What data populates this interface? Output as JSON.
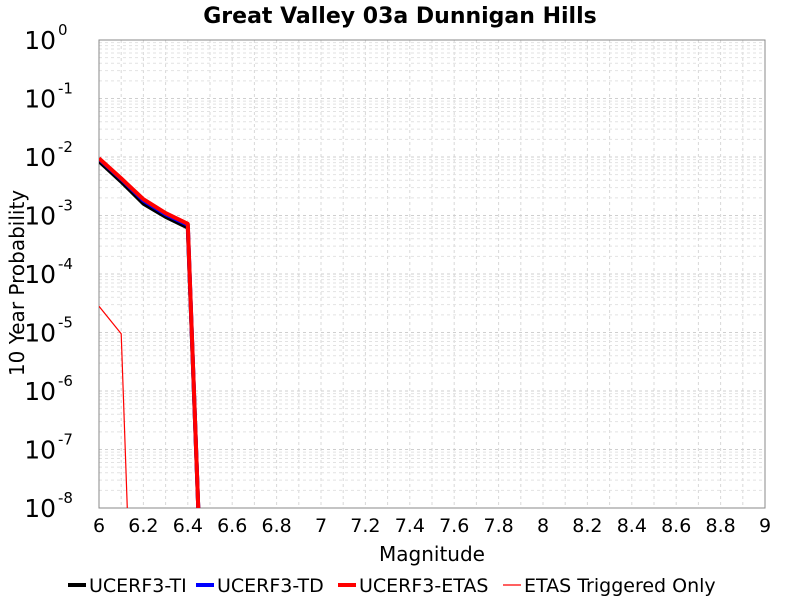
{
  "chart_data": {
    "type": "line",
    "title": "Great Valley 03a Dunnigan Hills",
    "xlabel": "Magnitude",
    "ylabel": "10 Year Probability",
    "xlim": [
      6,
      9
    ],
    "ylim": [
      1e-08,
      1
    ],
    "yscale": "log",
    "xticks": [
      "6",
      "6.2",
      "6.4",
      "6.6",
      "6.8",
      "7",
      "7.2",
      "7.4",
      "7.6",
      "7.8",
      "8",
      "8.2",
      "8.4",
      "8.6",
      "8.8",
      "9"
    ],
    "yticks": [
      {
        "base": "10",
        "exp": "0"
      },
      {
        "base": "10",
        "exp": "-1"
      },
      {
        "base": "10",
        "exp": "-2"
      },
      {
        "base": "10",
        "exp": "-3"
      },
      {
        "base": "10",
        "exp": "-4"
      },
      {
        "base": "10",
        "exp": "-5"
      },
      {
        "base": "10",
        "exp": "-6"
      },
      {
        "base": "10",
        "exp": "-7"
      },
      {
        "base": "10",
        "exp": "-8"
      }
    ],
    "grid": true,
    "legend_position": "bottom",
    "series": [
      {
        "name": "UCERF3-TI",
        "color": "#000000",
        "width": "thick",
        "x": [
          6.0,
          6.1,
          6.2,
          6.3,
          6.4,
          6.45
        ],
        "y": [
          0.0085,
          0.0038,
          0.0016,
          0.00095,
          0.00062,
          5e-09
        ]
      },
      {
        "name": "UCERF3-TD",
        "color": "#0000ff",
        "width": "thick",
        "x": [
          6.0,
          6.1,
          6.2,
          6.3,
          6.4,
          6.45
        ],
        "y": [
          0.0093,
          0.0042,
          0.0018,
          0.00105,
          0.00069,
          5e-09
        ]
      },
      {
        "name": "UCERF3-ETAS",
        "color": "#ff0000",
        "width": "thick",
        "x": [
          6.0,
          6.1,
          6.2,
          6.3,
          6.4,
          6.45
        ],
        "y": [
          0.0095,
          0.0043,
          0.0019,
          0.0011,
          0.00072,
          5e-09
        ]
      },
      {
        "name": "ETAS Triggered Only",
        "color": "#ff0000",
        "width": "thin",
        "x": [
          6.0,
          6.1,
          6.13
        ],
        "y": [
          2.8e-05,
          9.5e-06,
          5e-09
        ]
      }
    ]
  }
}
